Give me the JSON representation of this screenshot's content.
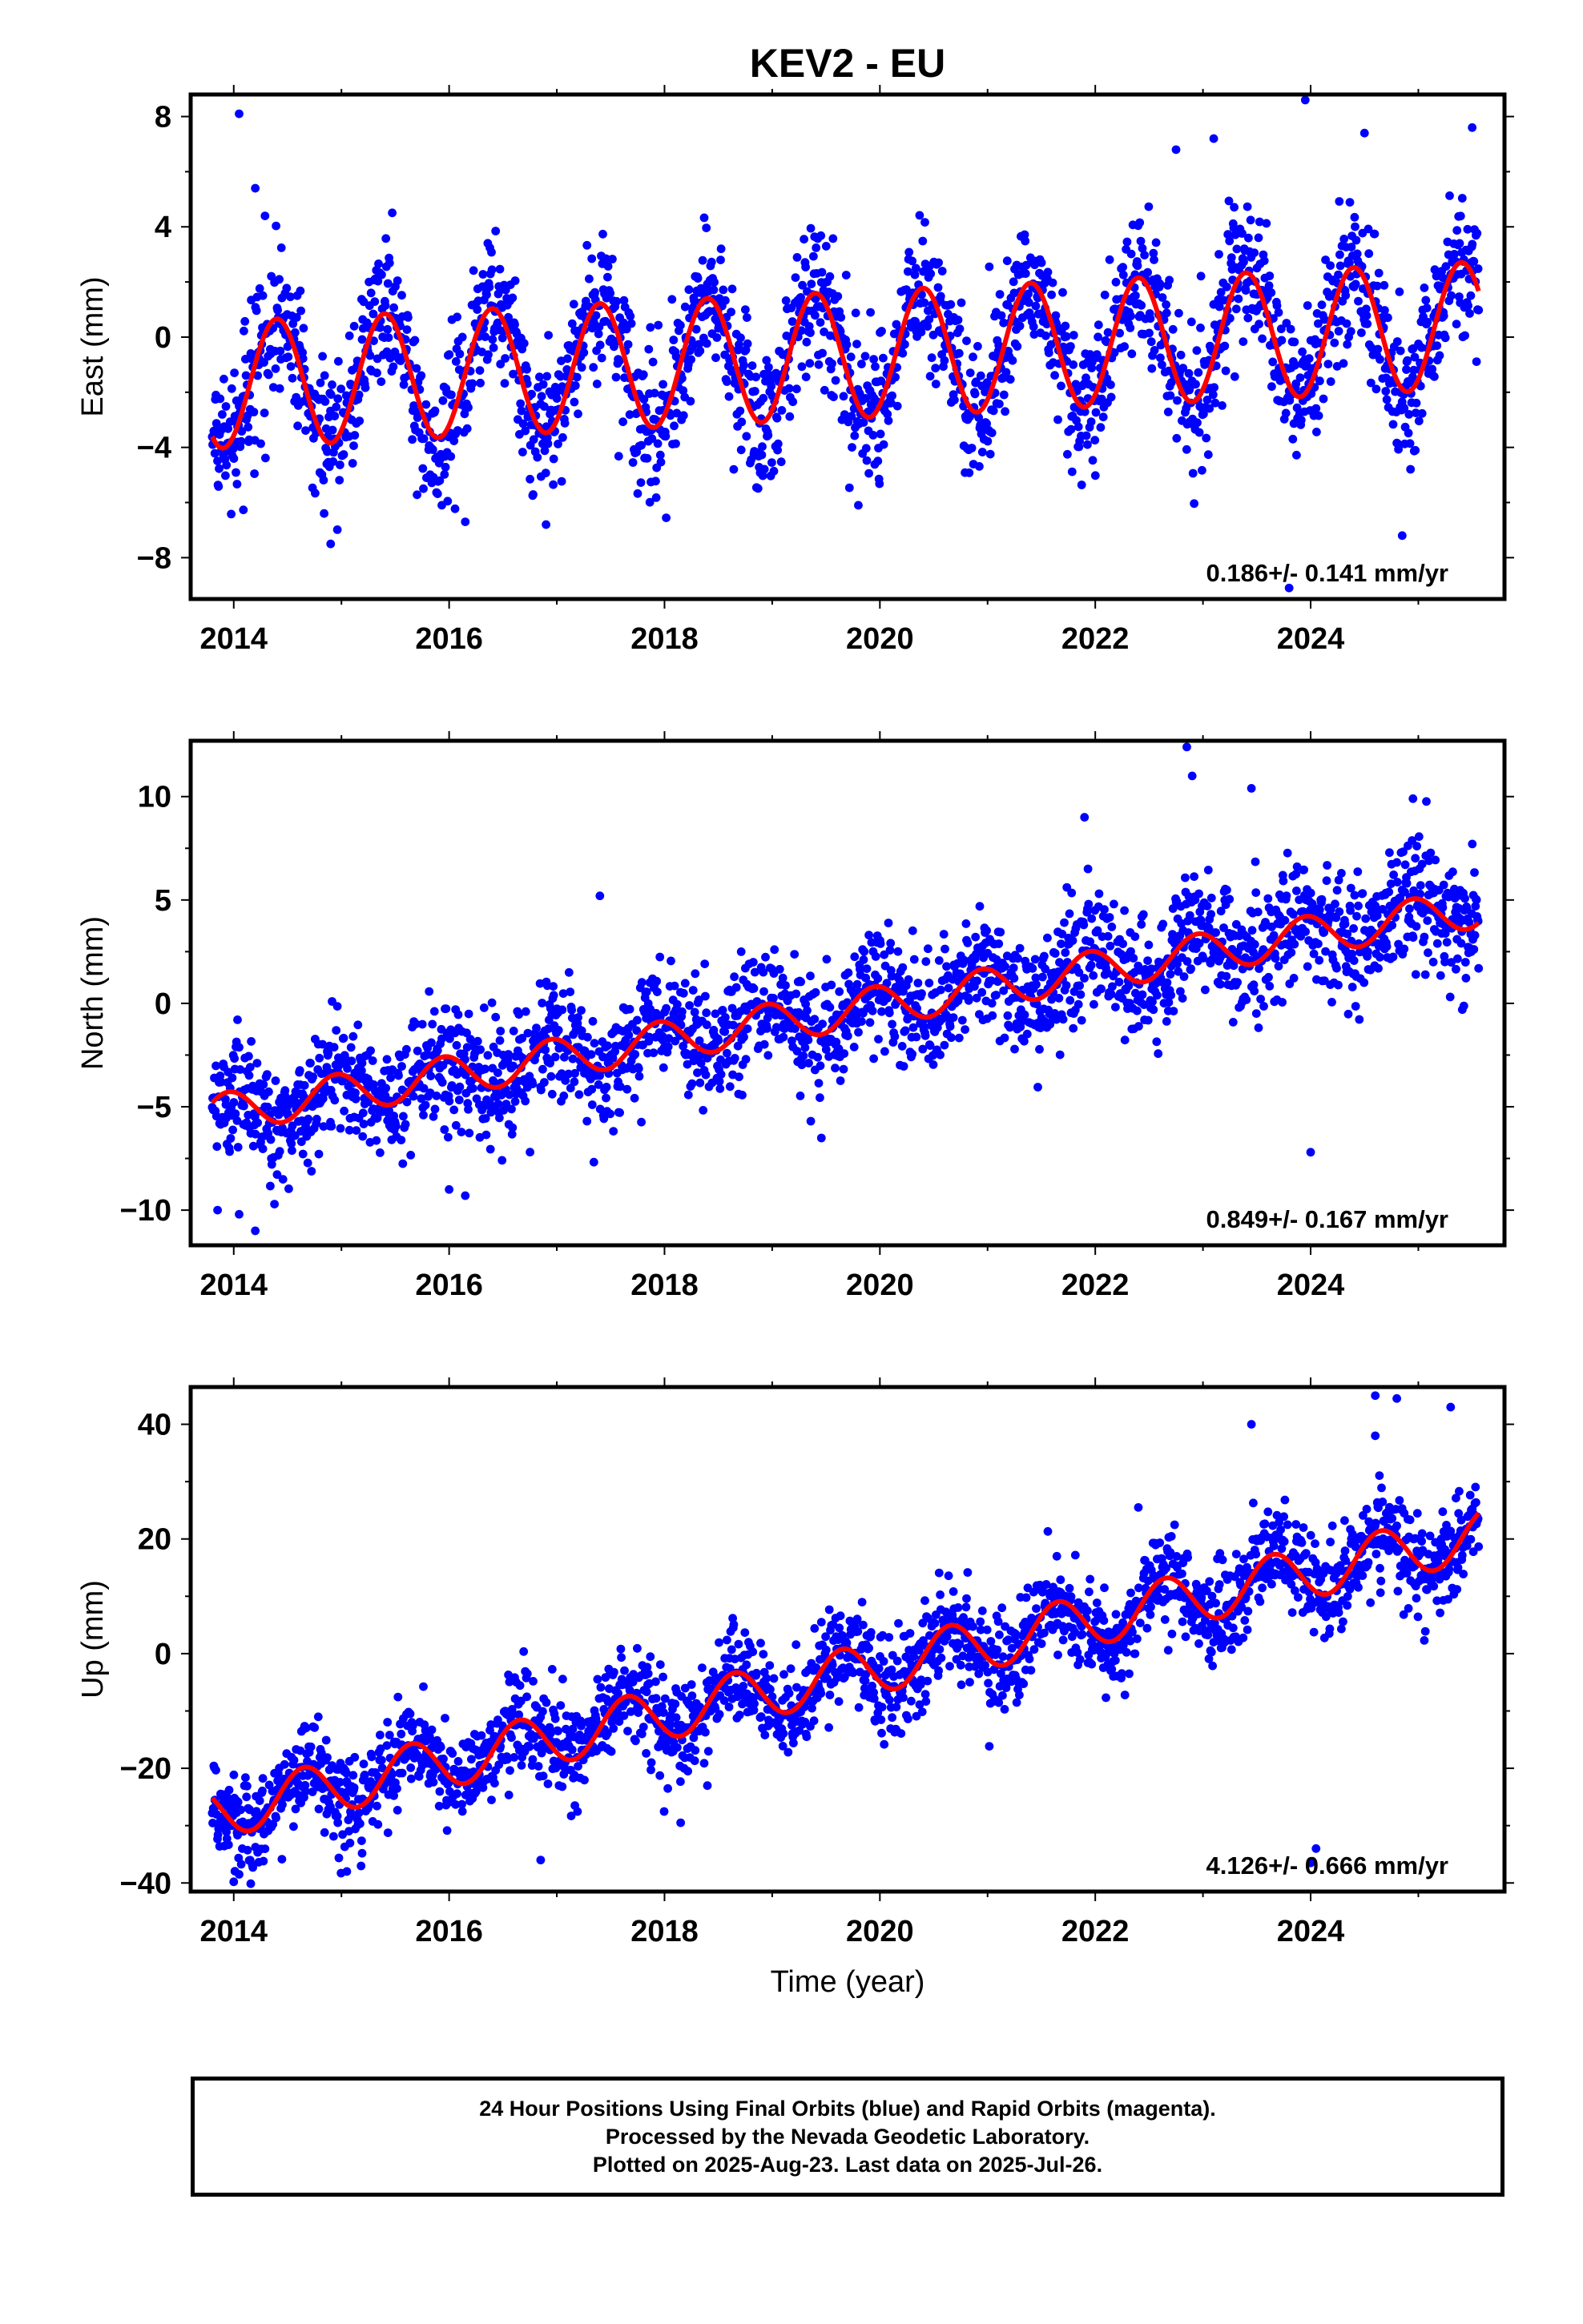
{
  "title": "KEV2 - EU",
  "xlabel": "Time (year)",
  "footer": {
    "line1": "24 Hour Positions Using Final Orbits (blue) and Rapid Orbits (magenta).",
    "line2": "Processed by the Nevada Geodetic Laboratory.",
    "line3": "Plotted on 2025-Aug-23. Last data on 2025-Jul-26."
  },
  "colors": {
    "points": "#0000ff",
    "model": "#ff0000",
    "axes": "#000000"
  },
  "chart_data": [
    {
      "type": "scatter",
      "ylabel": "East (mm)",
      "rate_label": "0.186+/- 0.141 mm/yr",
      "xlim": [
        2013.6,
        2025.8
      ],
      "ylim": [
        -9.5,
        8.8
      ],
      "xticks": [
        2014,
        2016,
        2018,
        2020,
        2022,
        2024
      ],
      "yticks": [
        -8,
        -4,
        0,
        4,
        8
      ],
      "x_start": 2013.8,
      "x_end": 2025.56,
      "trend_rate": 0.186,
      "trend_offset": -0.65,
      "annual_amplitude": 2.3,
      "annual_phase_year": 0.4,
      "scatter_sd": 1.3,
      "series": [
        {
          "name": "Final Orbits (blue)",
          "kind": "points"
        },
        {
          "name": "model",
          "kind": "line"
        }
      ],
      "outliers": [
        [
          2014.05,
          8.1
        ],
        [
          2014.2,
          5.4
        ],
        [
          2014.9,
          -7.5
        ],
        [
          2016.15,
          -6.7
        ],
        [
          2016.9,
          -6.8
        ],
        [
          2019.8,
          -6.1
        ],
        [
          2022.75,
          6.8
        ],
        [
          2023.1,
          7.2
        ],
        [
          2023.95,
          8.6
        ],
        [
          2024.5,
          7.4
        ],
        [
          2024.85,
          -7.2
        ],
        [
          2025.5,
          7.6
        ],
        [
          2023.8,
          -9.1
        ]
      ]
    },
    {
      "type": "scatter",
      "ylabel": "North (mm)",
      "rate_label": "0.849+/- 0.167 mm/yr",
      "xlim": [
        2013.6,
        2025.8
      ],
      "ylim": [
        -11.7,
        12.7
      ],
      "xticks": [
        2014,
        2016,
        2018,
        2020,
        2022,
        2024
      ],
      "yticks": [
        -10,
        -5,
        0,
        5,
        10
      ],
      "x_start": 2013.8,
      "x_end": 2025.56,
      "trend_rate": 0.849,
      "trend_offset": -0.35,
      "annual_amplitude": 0.95,
      "annual_phase_year": 0.95,
      "scatter_sd": 1.45,
      "series": [
        {
          "name": "Final Orbits (blue)",
          "kind": "points"
        },
        {
          "name": "model",
          "kind": "line"
        }
      ],
      "outliers": [
        [
          2013.85,
          -10.0
        ],
        [
          2014.05,
          -10.2
        ],
        [
          2014.2,
          -11.0
        ],
        [
          2016.0,
          -9.0
        ],
        [
          2016.15,
          -9.3
        ],
        [
          2022.85,
          12.4
        ],
        [
          2022.9,
          11.0
        ],
        [
          2023.45,
          10.4
        ],
        [
          2024.0,
          -7.2
        ],
        [
          2017.4,
          5.2
        ],
        [
          2021.9,
          9.0
        ],
        [
          2024.95,
          9.9
        ]
      ]
    },
    {
      "type": "scatter",
      "ylabel": "Up (mm)",
      "rate_label": "4.126+/- 0.666 mm/yr",
      "xlim": [
        2013.6,
        2025.8
      ],
      "ylim": [
        -41.5,
        46.5
      ],
      "xticks": [
        2014,
        2016,
        2018,
        2020,
        2022,
        2024
      ],
      "yticks": [
        -40,
        -20,
        0,
        20,
        40
      ],
      "x_start": 2013.8,
      "x_end": 2025.56,
      "trend_rate": 4.126,
      "trend_offset": -3.5,
      "annual_amplitude": 4.5,
      "annual_phase_year": 0.65,
      "scatter_sd": 4.2,
      "series": [
        {
          "name": "Final Orbits (blue)",
          "kind": "points"
        },
        {
          "name": "model",
          "kind": "line"
        }
      ],
      "outliers": [
        [
          2014.0,
          -39.8
        ],
        [
          2014.05,
          -38.5
        ],
        [
          2015.05,
          -38.0
        ],
        [
          2016.85,
          -36.0
        ],
        [
          2024.0,
          -36.5
        ],
        [
          2024.05,
          -34.0
        ],
        [
          2018.15,
          -29.5
        ],
        [
          2022.4,
          25.5
        ],
        [
          2023.45,
          40.0
        ],
        [
          2024.6,
          45.0
        ],
        [
          2024.8,
          44.5
        ],
        [
          2025.3,
          43.0
        ],
        [
          2024.6,
          38.0
        ]
      ]
    }
  ]
}
